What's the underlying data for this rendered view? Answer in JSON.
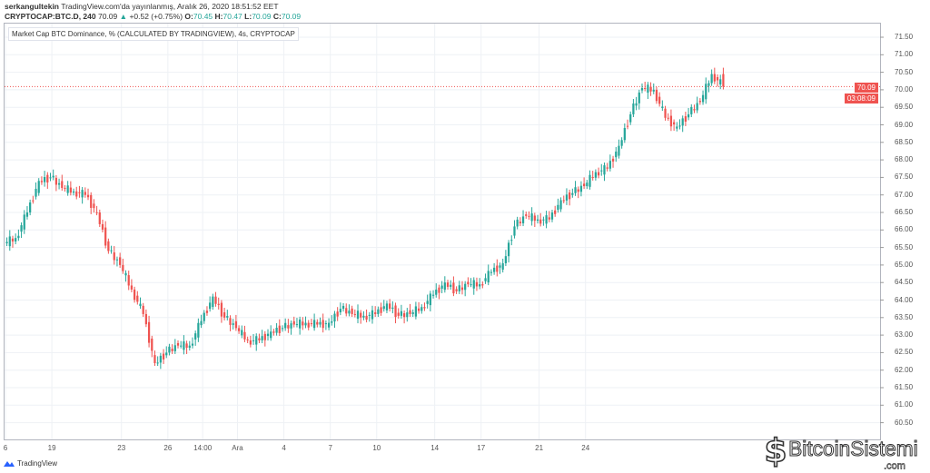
{
  "header": {
    "author": "serkangultekin",
    "published": "TradingView.com'da yayınlanmış, Aralık 26, 2020 18:51:52 EET",
    "symbol": "CRYPTOCAP:BTC.D, 240",
    "last": "70.09",
    "change": "+0.52 (+0.75%)",
    "o_label": "O:",
    "o": "70.45",
    "h_label": "H:",
    "h": "70.47",
    "l_label": "L:",
    "l": "70.09",
    "c_label": "C:",
    "c": "70.09"
  },
  "legend": "Market Cap BTC Dominance, % (CALCULATED BY TRADINGVIEW), 4s, CRYPTOCAP",
  "price_tag": "70.09",
  "countdown": "03:08:09",
  "footer": {
    "brand": "TradingView"
  },
  "watermark": {
    "name": "BitcoinSistemi",
    "domain": ".com"
  },
  "colors": {
    "up": "#26a69a",
    "down": "#ef5350",
    "grid": "#eef1f5"
  },
  "chart_data": {
    "type": "candlestick",
    "title": "Market Cap BTC Dominance, %",
    "ylim": [
      60.25,
      71.75
    ],
    "y_ticks": [
      "71.50",
      "71.00",
      "70.50",
      "70.00",
      "69.50",
      "69.00",
      "68.50",
      "68.00",
      "67.50",
      "67.00",
      "66.50",
      "66.00",
      "65.50",
      "65.00",
      "64.50",
      "64.00",
      "63.50",
      "63.00",
      "62.50",
      "62.00",
      "61.50",
      "61.00",
      "60.50"
    ],
    "x_ticks": [
      {
        "label": "6",
        "i": 0
      },
      {
        "label": "19",
        "i": 4
      },
      {
        "label": "23",
        "i": 10
      },
      {
        "label": "26",
        "i": 14
      },
      {
        "label": "14:00",
        "i": 17
      },
      {
        "label": "Ara",
        "i": 20
      },
      {
        "label": "4",
        "i": 24
      },
      {
        "label": "7",
        "i": 28
      },
      {
        "label": "10",
        "i": 32
      },
      {
        "label": "14",
        "i": 37
      },
      {
        "label": "17",
        "i": 41
      },
      {
        "label": "21",
        "i": 46
      },
      {
        "label": "24",
        "i": 50
      }
    ],
    "closes": [
      65.62,
      65.77,
      66.5,
      67.4,
      67.5,
      67.2,
      67.1,
      67.0,
      66.5,
      65.4,
      65.0,
      64.3,
      63.6,
      62.2,
      62.5,
      62.7,
      62.7,
      63.4,
      64.1,
      63.5,
      63.2,
      62.85,
      62.85,
      63.1,
      63.2,
      63.3,
      63.35,
      63.3,
      63.35,
      63.75,
      63.6,
      63.55,
      63.6,
      63.9,
      63.55,
      63.6,
      63.8,
      64.15,
      64.5,
      64.25,
      64.45,
      64.45,
      64.8,
      65.05,
      66.1,
      66.4,
      66.3,
      66.3,
      66.85,
      67.05,
      67.25,
      67.65,
      67.75,
      68.4,
      69.3,
      70.05,
      70.0,
      69.2,
      68.95,
      69.3,
      69.65,
      70.45,
      70.09
    ],
    "last_price": 70.09
  }
}
